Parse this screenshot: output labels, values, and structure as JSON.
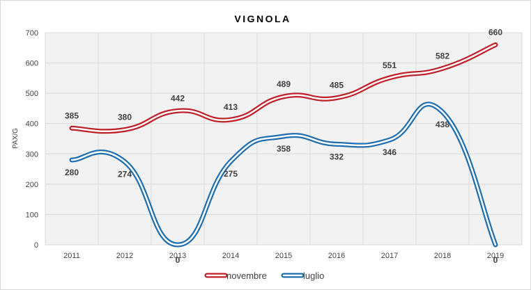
{
  "chart_data": {
    "type": "line",
    "title": "VIGNOLA",
    "xlabel": "",
    "ylabel": "PAX/G",
    "categories": [
      "2011",
      "2012",
      "2013",
      "2014",
      "2015",
      "2016",
      "2017",
      "2018",
      "2019"
    ],
    "ylim": [
      0,
      700
    ],
    "yticks": [
      "0",
      "100",
      "200",
      "300",
      "400",
      "500",
      "600",
      "700"
    ],
    "grid": true,
    "legend": "bottom",
    "series": [
      {
        "name": "novembre",
        "values": [
          385,
          380,
          442,
          413,
          489,
          485,
          551,
          582,
          660
        ],
        "labels": [
          "385",
          "380",
          "442",
          "413",
          "489",
          "485",
          "551",
          "582",
          "660"
        ],
        "color": "#c0202a"
      },
      {
        "name": "luglio",
        "values": [
          280,
          274,
          0,
          275,
          358,
          332,
          346,
          438,
          0
        ],
        "labels": [
          "280",
          "274",
          "0",
          "275",
          "358",
          "332",
          "346",
          "438",
          "0"
        ],
        "color": "#1f6fb0"
      }
    ]
  }
}
